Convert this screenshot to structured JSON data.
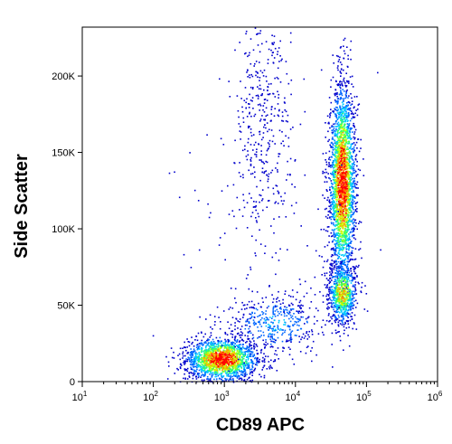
{
  "chart_data": {
    "type": "scatter",
    "style": "density-dot-plot",
    "xlabel": "CD89 APC",
    "ylabel": "Side Scatter",
    "x_scale": "log",
    "y_scale": "linear",
    "xlim": [
      10,
      1000000
    ],
    "ylim": [
      0,
      232000
    ],
    "x_ticks": [
      {
        "value": 10,
        "label_base": "10",
        "label_exp": "1"
      },
      {
        "value": 100,
        "label_base": "10",
        "label_exp": "2"
      },
      {
        "value": 1000,
        "label_base": "10",
        "label_exp": "3"
      },
      {
        "value": 10000,
        "label_base": "10",
        "label_exp": "4"
      },
      {
        "value": 100000,
        "label_base": "10",
        "label_exp": "5"
      },
      {
        "value": 1000000,
        "label_base": "10",
        "label_exp": "6"
      }
    ],
    "y_ticks": [
      {
        "value": 0,
        "label": "0"
      },
      {
        "value": 50000,
        "label": "50K"
      },
      {
        "value": 100000,
        "label": "100K"
      },
      {
        "value": 150000,
        "label": "150K"
      },
      {
        "value": 200000,
        "label": "200K"
      }
    ],
    "density_colors": [
      "#0000cc",
      "#0066ff",
      "#00ccff",
      "#33ff66",
      "#ccff00",
      "#ff9900",
      "#ff0000"
    ],
    "populations": [
      {
        "label": "",
        "x_center": 900,
        "y_center": 15000,
        "x_spread_decades": 0.25,
        "y_spread": 7000,
        "points": 1800,
        "peak_density": 1.0
      },
      {
        "label": "",
        "x_center": 45000,
        "y_center": 130000,
        "x_spread_decades": 0.09,
        "y_spread": 32000,
        "points": 2600,
        "peak_density": 1.0
      },
      {
        "label": "",
        "x_center": 45000,
        "y_center": 58000,
        "x_spread_decades": 0.1,
        "y_spread": 10000,
        "points": 700,
        "peak_density": 0.75
      },
      {
        "label": "",
        "x_center": 5000,
        "y_center": 38000,
        "x_spread_decades": 0.35,
        "y_spread": 10000,
        "points": 450,
        "peak_density": 0.3
      },
      {
        "label": "",
        "x_center": 3500,
        "y_center": 175000,
        "x_spread_decades": 0.2,
        "y_spread": 40000,
        "points": 380,
        "peak_density": 0.1
      },
      {
        "label": "",
        "x_center": 4000,
        "y_center": 100000,
        "x_spread_decades": 0.6,
        "y_spread": 60000,
        "points": 120,
        "peak_density": 0.05
      }
    ]
  }
}
